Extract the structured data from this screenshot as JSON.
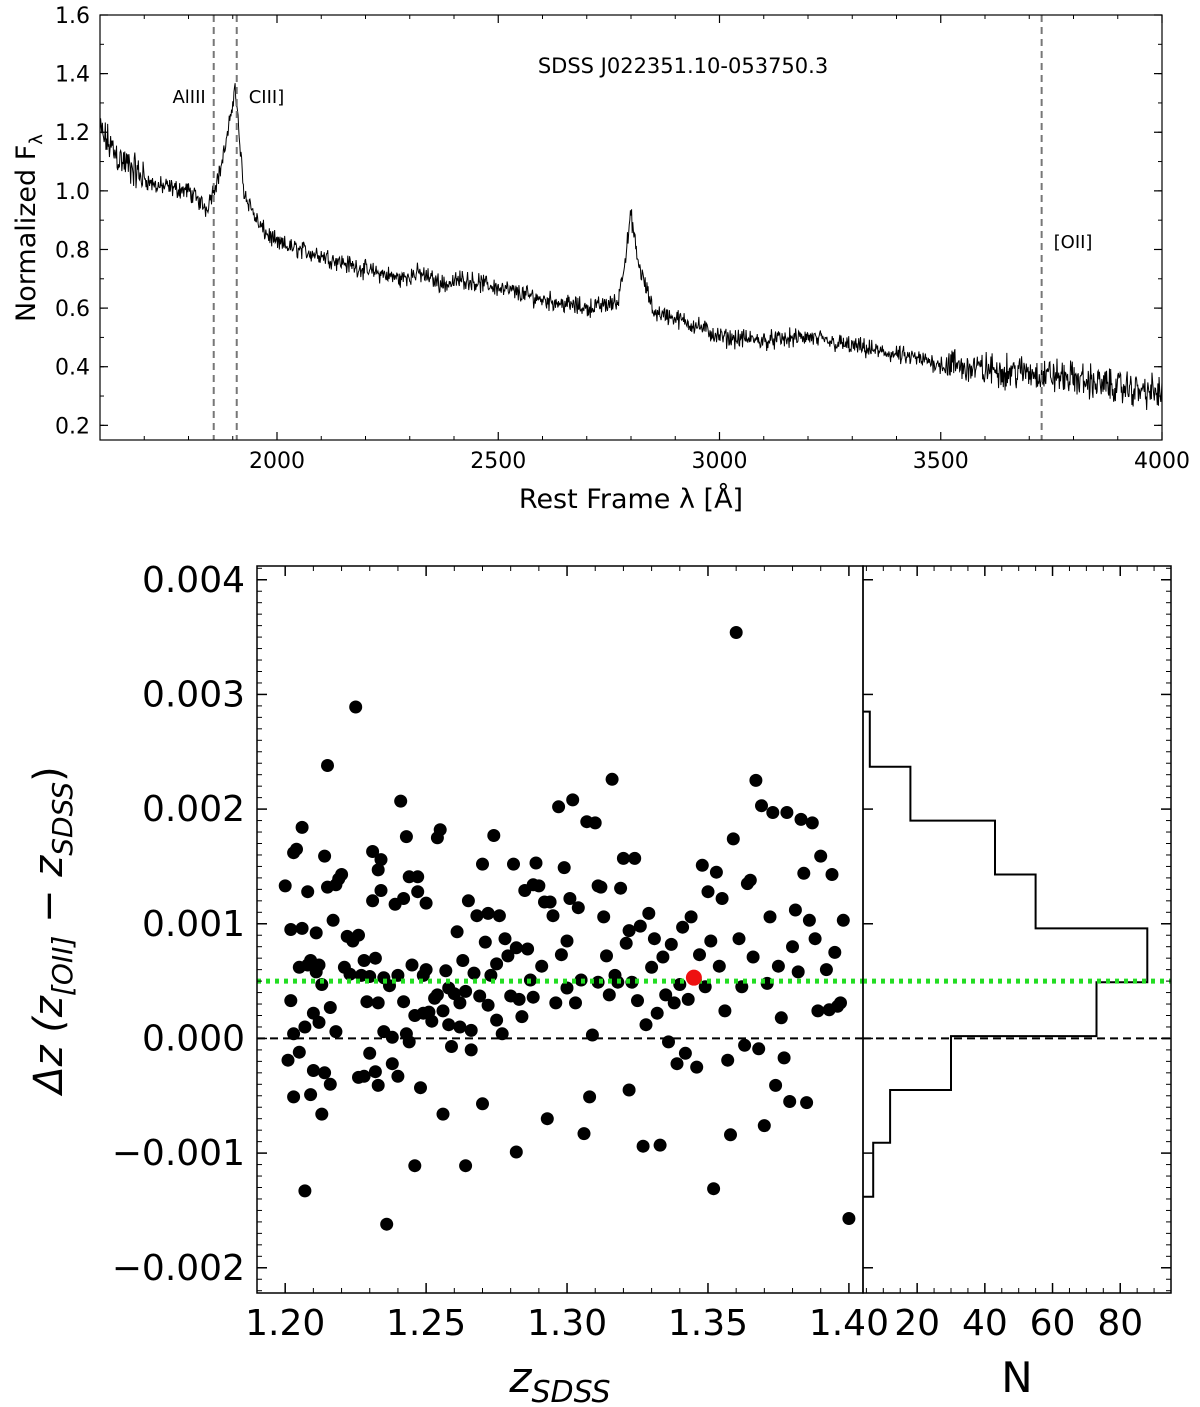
{
  "chart_data": [
    {
      "type": "line",
      "panel": "spectrum",
      "title": "SDSS J022351.10-053750.3",
      "xlabel": "Rest Frame λ [Å]",
      "ylabel": "Normalized F",
      "ylabel_sub": "λ",
      "xlim": [
        1600,
        4000
      ],
      "ylim": [
        0.15,
        1.6
      ],
      "xticks": [
        2000,
        2500,
        3000,
        3500,
        4000
      ],
      "yticks": [
        0.2,
        0.4,
        0.6,
        0.8,
        1.0,
        1.2,
        1.4,
        1.6
      ],
      "xtick_labels": [
        "2000",
        "2500",
        "3000",
        "3500",
        "4000"
      ],
      "ytick_labels": [
        "0.2",
        "0.4",
        "0.6",
        "0.8",
        "1.0",
        "1.2",
        "1.4",
        "1.6"
      ],
      "continuum": [
        [
          1600,
          1.2
        ],
        [
          1650,
          1.1
        ],
        [
          1720,
          1.02
        ],
        [
          1800,
          1.0
        ],
        [
          1840,
          0.94
        ],
        [
          1870,
          1.06
        ],
        [
          1890,
          1.2
        ],
        [
          1905,
          1.36
        ],
        [
          1925,
          1.0
        ],
        [
          1960,
          0.88
        ],
        [
          2000,
          0.82
        ],
        [
          2100,
          0.78
        ],
        [
          2200,
          0.73
        ],
        [
          2280,
          0.7
        ],
        [
          2320,
          0.72
        ],
        [
          2380,
          0.68
        ],
        [
          2420,
          0.7
        ],
        [
          2500,
          0.67
        ],
        [
          2600,
          0.63
        ],
        [
          2700,
          0.6
        ],
        [
          2770,
          0.62
        ],
        [
          2790,
          0.8
        ],
        [
          2800,
          0.92
        ],
        [
          2815,
          0.76
        ],
        [
          2850,
          0.59
        ],
        [
          2950,
          0.54
        ],
        [
          3000,
          0.5
        ],
        [
          3100,
          0.49
        ],
        [
          3200,
          0.5
        ],
        [
          3300,
          0.47
        ],
        [
          3400,
          0.44
        ],
        [
          3500,
          0.41
        ],
        [
          3600,
          0.39
        ],
        [
          3700,
          0.38
        ],
        [
          3800,
          0.36
        ],
        [
          3900,
          0.33
        ],
        [
          4000,
          0.31
        ]
      ],
      "noise_amplitude": 0.025,
      "emission_lines": [
        {
          "label": "AlIII",
          "wavelength": 1857
        },
        {
          "label": "CIII]",
          "wavelength": 1909
        },
        {
          "label": "[OII]",
          "wavelength": 3728
        }
      ]
    },
    {
      "type": "scatter",
      "panel": "redshift-offset",
      "xlabel": "z",
      "xlabel_sub": "SDSS",
      "ylabel_prefix": "Δz (z",
      "ylabel_sub1": "[OII]",
      "ylabel_mid": " − z",
      "ylabel_sub2": "SDSS",
      "ylabel_suffix": ")",
      "xlim": [
        1.19,
        1.405
      ],
      "ylim": [
        -0.00222,
        0.00412
      ],
      "xticks": [
        1.2,
        1.25,
        1.3,
        1.35,
        1.4
      ],
      "xtick_labels": [
        "1.20",
        "1.25",
        "1.30",
        "1.35",
        "1.40"
      ],
      "yticks": [
        -0.002,
        -0.001,
        0.0,
        0.001,
        0.002,
        0.003,
        0.004
      ],
      "ytick_labels": [
        "−0.002",
        "−0.001",
        "0.000",
        "0.001",
        "0.002",
        "0.003",
        "0.004"
      ],
      "reference_lines": [
        {
          "y": 0.0,
          "style": "dashed",
          "color": "#000000"
        },
        {
          "y": 0.0005,
          "style": "dotted",
          "color": "#22dd22"
        }
      ],
      "highlight_point": {
        "x": 1.345,
        "y": 0.00053,
        "color": "#ee1111"
      },
      "point_color": "#000000",
      "points": [
        [
          1.2,
          0.00133
        ],
        [
          1.201,
          -0.00019
        ],
        [
          1.202,
          0.00095
        ],
        [
          1.202,
          0.00033
        ],
        [
          1.203,
          0.00162
        ],
        [
          1.203,
          4e-05
        ],
        [
          1.203,
          -0.00051
        ],
        [
          1.204,
          0.00165
        ],
        [
          1.205,
          0.00062
        ],
        [
          1.205,
          -0.00012
        ],
        [
          1.206,
          0.00184
        ],
        [
          1.206,
          0.00096
        ],
        [
          1.207,
          -0.00133
        ],
        [
          1.207,
          0.0001
        ],
        [
          1.208,
          0.00064
        ],
        [
          1.208,
          0.00128
        ],
        [
          1.209,
          0.00068
        ],
        [
          1.209,
          -0.00049
        ],
        [
          1.21,
          0.00022
        ],
        [
          1.21,
          -0.00028
        ],
        [
          1.211,
          0.00058
        ],
        [
          1.211,
          0.00092
        ],
        [
          1.212,
          0.00064
        ],
        [
          1.212,
          0.00014
        ],
        [
          1.213,
          -0.00066
        ],
        [
          1.213,
          0.00047
        ],
        [
          1.214,
          0.00159
        ],
        [
          1.214,
          -0.0003
        ],
        [
          1.215,
          0.00238
        ],
        [
          1.215,
          0.00132
        ],
        [
          1.216,
          0.00027
        ],
        [
          1.216,
          -0.0004
        ],
        [
          1.217,
          0.00103
        ],
        [
          1.218,
          0.00134
        ],
        [
          1.218,
          6e-05
        ],
        [
          1.219,
          0.00139
        ],
        [
          1.22,
          0.00143
        ],
        [
          1.221,
          0.00062
        ],
        [
          1.222,
          0.00089
        ],
        [
          1.223,
          0.00056
        ],
        [
          1.224,
          0.00085
        ],
        [
          1.225,
          0.00289
        ],
        [
          1.226,
          0.0009
        ],
        [
          1.226,
          -0.00034
        ],
        [
          1.227,
          0.00055
        ],
        [
          1.228,
          0.00068
        ],
        [
          1.228,
          -0.00033
        ],
        [
          1.229,
          0.00032
        ],
        [
          1.23,
          0.00054
        ],
        [
          1.23,
          -0.00013
        ],
        [
          1.231,
          0.00163
        ],
        [
          1.231,
          0.0012
        ],
        [
          1.232,
          -0.00029
        ],
        [
          1.232,
          0.0007
        ],
        [
          1.233,
          0.00147
        ],
        [
          1.233,
          -0.00041
        ],
        [
          1.233,
          0.00031
        ],
        [
          1.234,
          0.00129
        ],
        [
          1.234,
          0.00156
        ],
        [
          1.235,
          6e-05
        ],
        [
          1.235,
          0.00053
        ],
        [
          1.236,
          -0.00162
        ],
        [
          1.237,
          0.00046
        ],
        [
          1.238,
          -0.00022
        ],
        [
          1.238,
          1e-05
        ],
        [
          1.239,
          0.00117
        ],
        [
          1.24,
          0.00055
        ],
        [
          1.24,
          -0.00033
        ],
        [
          1.241,
          0.00207
        ],
        [
          1.242,
          0.00122
        ],
        [
          1.242,
          0.00032
        ],
        [
          1.243,
          0.00176
        ],
        [
          1.243,
          4e-05
        ],
        [
          1.244,
          0.00141
        ],
        [
          1.244,
          -3e-05
        ],
        [
          1.245,
          0.00064
        ],
        [
          1.246,
          -0.00111
        ],
        [
          1.246,
          0.0002
        ],
        [
          1.247,
          0.00141
        ],
        [
          1.247,
          0.00128
        ],
        [
          1.248,
          -0.00043
        ],
        [
          1.249,
          0.00055
        ],
        [
          1.249,
          0.00022
        ],
        [
          1.25,
          0.00118
        ],
        [
          1.25,
          0.0006
        ],
        [
          1.251,
          0.00023
        ],
        [
          1.252,
          0.00015
        ],
        [
          1.253,
          0.00035
        ],
        [
          1.254,
          0.00175
        ],
        [
          1.254,
          0.00038
        ],
        [
          1.255,
          0.00182
        ],
        [
          1.256,
          -0.00066
        ],
        [
          1.256,
          0.00024
        ],
        [
          1.257,
          0.00059
        ],
        [
          1.258,
          0.00012
        ],
        [
          1.258,
          0.00044
        ],
        [
          1.259,
          -7e-05
        ],
        [
          1.26,
          0.00039
        ],
        [
          1.261,
          0.00093
        ],
        [
          1.262,
          0.0001
        ],
        [
          1.262,
          0.00031
        ],
        [
          1.263,
          0.00068
        ],
        [
          1.264,
          -0.00111
        ],
        [
          1.264,
          0.00041
        ],
        [
          1.265,
          0.0012
        ],
        [
          1.266,
          7e-05
        ],
        [
          1.266,
          -0.0001
        ],
        [
          1.267,
          0.00057
        ],
        [
          1.268,
          0.00107
        ],
        [
          1.269,
          0.00037
        ],
        [
          1.27,
          0.00152
        ],
        [
          1.27,
          -0.00057
        ],
        [
          1.271,
          0.00084
        ],
        [
          1.272,
          0.00109
        ],
        [
          1.272,
          0.00029
        ],
        [
          1.273,
          0.00055
        ],
        [
          1.274,
          0.00177
        ],
        [
          1.275,
          0.00016
        ],
        [
          1.275,
          0.00065
        ],
        [
          1.276,
          0.00107
        ],
        [
          1.277,
          4e-05
        ],
        [
          1.278,
          0.00087
        ],
        [
          1.279,
          0.00072
        ],
        [
          1.28,
          0.00037
        ],
        [
          1.281,
          0.00152
        ],
        [
          1.282,
          0.00079
        ],
        [
          1.282,
          -0.00099
        ],
        [
          1.283,
          0.00034
        ],
        [
          1.284,
          0.00019
        ],
        [
          1.285,
          0.00129
        ],
        [
          1.286,
          0.00078
        ],
        [
          1.287,
          0.00051
        ],
        [
          1.288,
          0.00134
        ],
        [
          1.288,
          0.00036
        ],
        [
          1.289,
          0.00153
        ],
        [
          1.29,
          0.00133
        ],
        [
          1.291,
          0.00063
        ],
        [
          1.292,
          0.00119
        ],
        [
          1.293,
          -0.0007
        ],
        [
          1.294,
          0.00119
        ],
        [
          1.295,
          0.00107
        ],
        [
          1.296,
          0.00031
        ],
        [
          1.297,
          0.00202
        ],
        [
          1.298,
          0.00073
        ],
        [
          1.299,
          0.00149
        ],
        [
          1.3,
          0.00085
        ],
        [
          1.3,
          0.00044
        ],
        [
          1.301,
          0.00122
        ],
        [
          1.302,
          0.00208
        ],
        [
          1.303,
          0.00031
        ],
        [
          1.304,
          0.00114
        ],
        [
          1.305,
          0.00051
        ],
        [
          1.306,
          -0.00083
        ],
        [
          1.307,
          0.00189
        ],
        [
          1.308,
          -0.00051
        ],
        [
          1.309,
          3e-05
        ],
        [
          1.31,
          0.00188
        ],
        [
          1.311,
          0.00049
        ],
        [
          1.311,
          0.00133
        ],
        [
          1.312,
          0.00132
        ],
        [
          1.313,
          0.00106
        ],
        [
          1.314,
          0.00072
        ],
        [
          1.315,
          0.00038
        ],
        [
          1.316,
          0.00226
        ],
        [
          1.317,
          0.00055
        ],
        [
          1.318,
          0.00049
        ],
        [
          1.319,
          0.00131
        ],
        [
          1.32,
          0.00157
        ],
        [
          1.321,
          0.00083
        ],
        [
          1.322,
          -0.00045
        ],
        [
          1.322,
          0.00094
        ],
        [
          1.323,
          0.00049
        ],
        [
          1.324,
          0.00157
        ],
        [
          1.325,
          0.00033
        ],
        [
          1.326,
          0.00098
        ],
        [
          1.327,
          -0.00094
        ],
        [
          1.328,
          0.00012
        ],
        [
          1.329,
          0.00109
        ],
        [
          1.33,
          0.00062
        ],
        [
          1.331,
          0.00087
        ],
        [
          1.332,
          0.00022
        ],
        [
          1.333,
          -0.00093
        ],
        [
          1.334,
          0.00071
        ],
        [
          1.335,
          0.00038
        ],
        [
          1.336,
          -3e-05
        ],
        [
          1.337,
          0.00082
        ],
        [
          1.338,
          0.00031
        ],
        [
          1.339,
          -0.00022
        ],
        [
          1.34,
          0.00047
        ],
        [
          1.341,
          0.00097
        ],
        [
          1.342,
          -0.00013
        ],
        [
          1.343,
          0.00034
        ],
        [
          1.344,
          0.00106
        ],
        [
          1.346,
          -0.00025
        ],
        [
          1.347,
          0.00073
        ],
        [
          1.348,
          0.00151
        ],
        [
          1.349,
          0.00045
        ],
        [
          1.35,
          0.00128
        ],
        [
          1.351,
          0.00085
        ],
        [
          1.352,
          -0.00131
        ],
        [
          1.353,
          0.00145
        ],
        [
          1.354,
          0.00063
        ],
        [
          1.355,
          0.00122
        ],
        [
          1.356,
          0.00024
        ],
        [
          1.357,
          -0.00019
        ],
        [
          1.358,
          -0.00084
        ],
        [
          1.359,
          0.00174
        ],
        [
          1.36,
          0.00354
        ],
        [
          1.361,
          0.00087
        ],
        [
          1.362,
          0.00045
        ],
        [
          1.363,
          -6e-05
        ],
        [
          1.364,
          0.00135
        ],
        [
          1.365,
          0.00138
        ],
        [
          1.366,
          0.00071
        ],
        [
          1.367,
          0.00225
        ],
        [
          1.368,
          -9e-05
        ],
        [
          1.369,
          0.00203
        ],
        [
          1.37,
          -0.00076
        ],
        [
          1.371,
          0.00048
        ],
        [
          1.372,
          0.00106
        ],
        [
          1.373,
          0.00197
        ],
        [
          1.374,
          -0.00041
        ],
        [
          1.375,
          0.00063
        ],
        [
          1.376,
          0.00018
        ],
        [
          1.377,
          -0.00017
        ],
        [
          1.378,
          0.00197
        ],
        [
          1.379,
          -0.00055
        ],
        [
          1.38,
          0.0008
        ],
        [
          1.381,
          0.00112
        ],
        [
          1.382,
          0.00058
        ],
        [
          1.383,
          0.00191
        ],
        [
          1.384,
          0.00144
        ],
        [
          1.385,
          -0.00056
        ],
        [
          1.386,
          0.00103
        ],
        [
          1.387,
          0.00188
        ],
        [
          1.388,
          0.00087
        ],
        [
          1.389,
          0.00024
        ],
        [
          1.39,
          0.00159
        ],
        [
          1.392,
          0.0006
        ],
        [
          1.394,
          0.00143
        ],
        [
          1.396,
          0.00028
        ],
        [
          1.398,
          0.00103
        ],
        [
          1.4,
          -0.00157
        ],
        [
          1.393,
          0.00025
        ],
        [
          1.397,
          0.00031
        ],
        [
          1.395,
          0.00075
        ]
      ]
    },
    {
      "type": "histogram",
      "panel": "offset-distribution",
      "orientation": "horizontal",
      "xlabel": "N",
      "xlim": [
        4,
        95
      ],
      "xticks": [
        20,
        40,
        60,
        80
      ],
      "xtick_labels": [
        "20",
        "40",
        "60",
        "80"
      ],
      "bins": [
        {
          "y0": -0.00138,
          "y1": -0.00091,
          "count": 7
        },
        {
          "y0": -0.00091,
          "y1": -0.00045,
          "count": 12
        },
        {
          "y0": -0.00045,
          "y1": 2e-05,
          "count": 30
        },
        {
          "y0": 2e-05,
          "y1": 0.00049,
          "count": 73
        },
        {
          "y0": 0.00049,
          "y1": 0.00096,
          "count": 88
        },
        {
          "y0": 0.00096,
          "y1": 0.00143,
          "count": 55
        },
        {
          "y0": 0.00143,
          "y1": 0.0019,
          "count": 43
        },
        {
          "y0": 0.0019,
          "y1": 0.00237,
          "count": 18
        },
        {
          "y0": 0.00237,
          "y1": 0.00285,
          "count": 6
        }
      ]
    }
  ]
}
